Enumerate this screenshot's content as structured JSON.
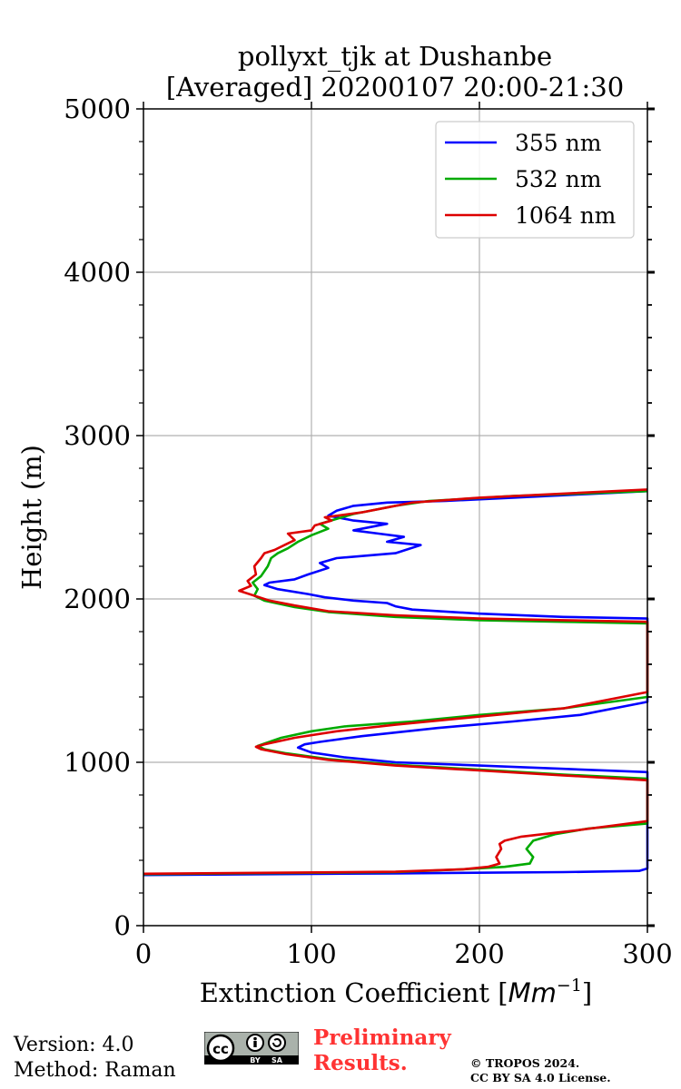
{
  "chart_data": {
    "type": "line",
    "title": [
      "pollyxt_tjk at Dushanbe",
      "[Averaged] 20200107 20:00-21:30"
    ],
    "xlabel": "Extinction Coefficient [Mm⁻¹]",
    "xlabel_base": "Extinction Coefficient [",
    "xlabel_unit": "Mm",
    "xlabel_exp": "−1",
    "xlabel_close": "]",
    "ylabel": "Height (m)",
    "xlim": [
      0,
      300
    ],
    "ylim": [
      0,
      5000
    ],
    "xticks": [
      0,
      100,
      200,
      300
    ],
    "yticks": [
      0,
      1000,
      2000,
      3000,
      4000,
      5000
    ],
    "xtick_labels": [
      "0",
      "100",
      "200",
      "300"
    ],
    "ytick_labels": [
      "0",
      "1000",
      "2000",
      "3000",
      "4000",
      "5000"
    ],
    "grid": true,
    "legend_position": "top-right",
    "series": [
      {
        "name": "355 nm",
        "color": "#0000ff",
        "points": [
          [
            0,
            310
          ],
          [
            150,
            320
          ],
          [
            250,
            328
          ],
          [
            295,
            335
          ],
          [
            300,
            350
          ],
          [
            300,
            940
          ],
          [
            250,
            960
          ],
          [
            200,
            980
          ],
          [
            150,
            1000
          ],
          [
            120,
            1030
          ],
          [
            100,
            1060
          ],
          [
            92,
            1090
          ],
          [
            96,
            1110
          ],
          [
            105,
            1125
          ],
          [
            130,
            1160
          ],
          [
            175,
            1210
          ],
          [
            220,
            1250
          ],
          [
            260,
            1290
          ],
          [
            300,
            1370
          ],
          [
            300,
            1880
          ],
          [
            250,
            1890
          ],
          [
            200,
            1910
          ],
          [
            160,
            1935
          ],
          [
            150,
            1955
          ],
          [
            145,
            1975
          ],
          [
            125,
            1990
          ],
          [
            108,
            2010
          ],
          [
            98,
            2030
          ],
          [
            80,
            2060
          ],
          [
            72,
            2085
          ],
          [
            75,
            2100
          ],
          [
            90,
            2120
          ],
          [
            98,
            2150
          ],
          [
            110,
            2190
          ],
          [
            105,
            2220
          ],
          [
            115,
            2250
          ],
          [
            150,
            2280
          ],
          [
            165,
            2330
          ],
          [
            145,
            2350
          ],
          [
            155,
            2380
          ],
          [
            140,
            2400
          ],
          [
            125,
            2420
          ],
          [
            135,
            2440
          ],
          [
            145,
            2460
          ],
          [
            125,
            2480
          ],
          [
            110,
            2510
          ],
          [
            115,
            2540
          ],
          [
            125,
            2570
          ],
          [
            145,
            2590
          ],
          [
            180,
            2600
          ],
          [
            220,
            2620
          ],
          [
            260,
            2640
          ],
          [
            300,
            2660
          ]
        ]
      },
      {
        "name": "532 nm",
        "color": "#00aa00",
        "points": [
          [
            0,
            315
          ],
          [
            150,
            328
          ],
          [
            190,
            345
          ],
          [
            215,
            360
          ],
          [
            230,
            380
          ],
          [
            232,
            420
          ],
          [
            228,
            470
          ],
          [
            232,
            520
          ],
          [
            245,
            560
          ],
          [
            265,
            595
          ],
          [
            300,
            625
          ],
          [
            300,
            900
          ],
          [
            250,
            925
          ],
          [
            200,
            955
          ],
          [
            150,
            985
          ],
          [
            110,
            1020
          ],
          [
            85,
            1055
          ],
          [
            72,
            1080
          ],
          [
            68,
            1100
          ],
          [
            72,
            1115
          ],
          [
            82,
            1150
          ],
          [
            100,
            1190
          ],
          [
            120,
            1220
          ],
          [
            160,
            1250
          ],
          [
            200,
            1290
          ],
          [
            250,
            1330
          ],
          [
            300,
            1400
          ],
          [
            300,
            1850
          ],
          [
            250,
            1860
          ],
          [
            200,
            1870
          ],
          [
            150,
            1890
          ],
          [
            110,
            1920
          ],
          [
            90,
            1950
          ],
          [
            72,
            1990
          ],
          [
            66,
            2020
          ],
          [
            68,
            2060
          ],
          [
            65,
            2100
          ],
          [
            70,
            2140
          ],
          [
            74,
            2200
          ],
          [
            76,
            2250
          ],
          [
            80,
            2280
          ],
          [
            86,
            2310
          ],
          [
            92,
            2350
          ],
          [
            100,
            2390
          ],
          [
            110,
            2430
          ],
          [
            105,
            2460
          ],
          [
            115,
            2490
          ],
          [
            125,
            2520
          ],
          [
            140,
            2550
          ],
          [
            150,
            2570
          ],
          [
            170,
            2600
          ],
          [
            220,
            2630
          ],
          [
            300,
            2660
          ]
        ]
      },
      {
        "name": "1064 nm",
        "color": "#dd0000",
        "points": [
          [
            0,
            318
          ],
          [
            150,
            330
          ],
          [
            190,
            345
          ],
          [
            205,
            360
          ],
          [
            212,
            380
          ],
          [
            210,
            420
          ],
          [
            213,
            470
          ],
          [
            212,
            500
          ],
          [
            215,
            520
          ],
          [
            225,
            545
          ],
          [
            255,
            580
          ],
          [
            300,
            640
          ],
          [
            300,
            890
          ],
          [
            250,
            920
          ],
          [
            200,
            950
          ],
          [
            150,
            980
          ],
          [
            110,
            1015
          ],
          [
            85,
            1050
          ],
          [
            70,
            1080
          ],
          [
            67,
            1095
          ],
          [
            72,
            1110
          ],
          [
            90,
            1150
          ],
          [
            115,
            1190
          ],
          [
            150,
            1230
          ],
          [
            200,
            1280
          ],
          [
            250,
            1330
          ],
          [
            300,
            1430
          ],
          [
            300,
            1860
          ],
          [
            250,
            1870
          ],
          [
            200,
            1880
          ],
          [
            150,
            1900
          ],
          [
            110,
            1925
          ],
          [
            90,
            1960
          ],
          [
            75,
            1990
          ],
          [
            57,
            2050
          ],
          [
            64,
            2080
          ],
          [
            62,
            2110
          ],
          [
            67,
            2150
          ],
          [
            66,
            2200
          ],
          [
            70,
            2250
          ],
          [
            72,
            2280
          ],
          [
            78,
            2300
          ],
          [
            84,
            2330
          ],
          [
            90,
            2360
          ],
          [
            86,
            2400
          ],
          [
            100,
            2420
          ],
          [
            102,
            2450
          ],
          [
            112,
            2480
          ],
          [
            108,
            2500
          ],
          [
            130,
            2530
          ],
          [
            145,
            2560
          ],
          [
            160,
            2590
          ],
          [
            200,
            2620
          ],
          [
            300,
            2670
          ]
        ]
      }
    ]
  },
  "footer": {
    "version": "Version: 4.0",
    "method": "Method: Raman",
    "license_badge": [
      "cc",
      "BY",
      "SA"
    ],
    "preliminary_line1": "Preliminary",
    "preliminary_line2": "Results.",
    "copyright_line1": "© TROPOS 2024.",
    "copyright_line2": "CC BY SA 4.0 License."
  }
}
